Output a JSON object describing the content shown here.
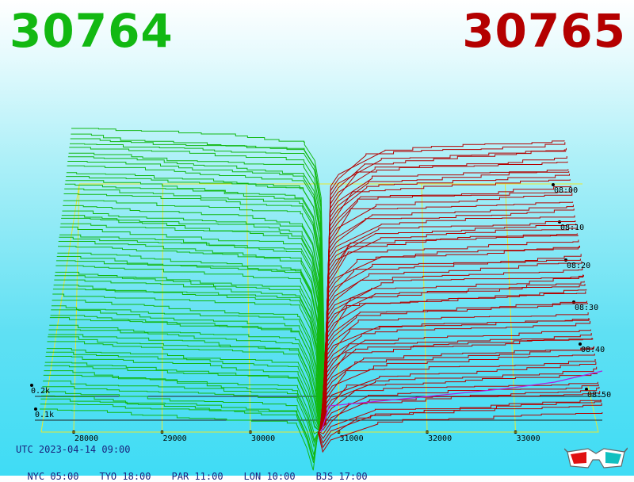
{
  "header": {
    "bid_price": "30764",
    "ask_price": "30765",
    "bid_color": "#12b812",
    "ask_color": "#b40000"
  },
  "chart_data": {
    "type": "area",
    "title": "",
    "x_axis": {
      "label": "",
      "range": [
        27900,
        33900
      ],
      "ticks": [
        "28000",
        "29000",
        "30000",
        "31000",
        "32000",
        "33000"
      ]
    },
    "depth_axis": {
      "label": "",
      "ticks": [
        "0.1k",
        "0.2k"
      ]
    },
    "time_axis": {
      "label": "",
      "ticks": [
        "08:00",
        "08:10",
        "08:20",
        "08:30",
        "08:40",
        "08:50"
      ]
    },
    "series": [
      {
        "side": "bid",
        "color": "#12b812",
        "price_range": [
          27900,
          30764
        ]
      },
      {
        "side": "ask",
        "color": "#b40000",
        "price_range": [
          30765,
          33600
        ]
      }
    ],
    "current_ask_color": "#b020e0",
    "grid": true
  },
  "footer": {
    "utc_label": "UTC 2023-04-14 09:00",
    "zones": [
      {
        "label": "NYC 05:00"
      },
      {
        "label": "TYO 18:00"
      },
      {
        "label": "PAR 11:00"
      },
      {
        "label": "LON 10:00"
      },
      {
        "label": "BJS 17:00"
      }
    ]
  },
  "icons": {
    "glasses": "3d-glasses-icon"
  }
}
